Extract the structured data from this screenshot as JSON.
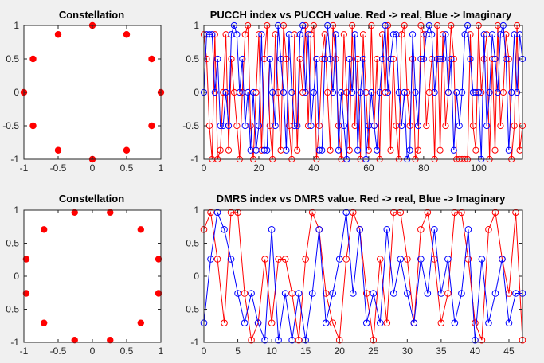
{
  "colors": {
    "real": "#ff0000",
    "imag": "#0000ff",
    "axes_bg": "#ffffff",
    "figure_bg": "#f0f0f0"
  },
  "chart_data": [
    {
      "id": "const-pucch",
      "type": "scatter",
      "title": "Constellation",
      "xlim": [
        -1,
        1
      ],
      "ylim": [
        -1,
        1
      ],
      "xticks": [
        -1,
        -0.5,
        0,
        0.5,
        1
      ],
      "yticks": [
        1,
        0.5,
        0,
        -0.5,
        -1
      ],
      "grid": false,
      "points": [
        [
          1,
          0
        ],
        [
          0.866,
          0.5
        ],
        [
          0.5,
          0.866
        ],
        [
          0,
          1
        ],
        [
          -0.5,
          0.866
        ],
        [
          -0.866,
          0.5
        ],
        [
          -1,
          0
        ],
        [
          -0.866,
          -0.5
        ],
        [
          -0.5,
          -0.866
        ],
        [
          0,
          -1
        ],
        [
          0.5,
          -0.866
        ],
        [
          0.866,
          -0.5
        ]
      ]
    },
    {
      "id": "pucch-seq",
      "type": "line",
      "title": "PUCCH index vs PUCCH value. Red -> real, Blue -> Imaginary",
      "xlim": [
        0,
        116
      ],
      "ylim": [
        -1,
        1
      ],
      "xticks": [
        0,
        20,
        40,
        60,
        80,
        100
      ],
      "yticks": [
        1,
        0.5,
        0,
        -0.5,
        -1
      ],
      "grid": false,
      "series": [
        {
          "color": "real",
          "values": [
            0.866,
            0.5,
            -0.5,
            -1,
            0.866,
            -1,
            -0.866,
            0,
            0.866,
            -0.866,
            0.5,
            0,
            -0.5,
            -1,
            0,
            0.866,
            1,
            -0.5,
            -1,
            0,
            0.866,
            -0.866,
            0.5,
            1,
            -0.5,
            -1,
            0.866,
            0,
            -0.866,
            1,
            0.5,
            -0.5,
            -1,
            0.866,
            -0.866,
            0.5,
            0,
            1,
            -0.5,
            0.866,
            1,
            -1,
            -0.5,
            0.5,
            0.866,
            0,
            -0.866,
            1,
            0.5,
            -0.5,
            -1,
            0.866,
            0,
            -0.866,
            1,
            -0.5,
            0.5,
            -1,
            0.866,
            0,
            -0.866,
            1,
            -0.5,
            0.5,
            -1,
            0.866,
            0,
            1,
            -0.866,
            0.5,
            -0.5,
            -1,
            0.866,
            1,
            0,
            -0.5,
            0.5,
            -1,
            -0.866,
            1,
            0.866,
            -0.5,
            0,
            0.5,
            -1,
            1,
            -0.866,
            0.866,
            -0.5,
            0,
            1,
            0.5,
            -1,
            -1,
            -1,
            -1,
            -1,
            0.866,
            -0.5,
            -0.866,
            1,
            0,
            0.5,
            0.866,
            -1,
            0.5,
            -0.866,
            1,
            -0.5,
            0,
            0.866,
            0.5,
            -1,
            -0.5,
            1,
            -0.866,
            -0.5
          ]
        },
        {
          "color": "imag",
          "values": [
            0,
            0.866,
            0.866,
            0.866,
            0,
            0.5,
            -0.5,
            -0.5,
            0,
            -0.5,
            0.866,
            1,
            0.866,
            0,
            0.5,
            -0.5,
            0,
            -0.866,
            0,
            -0.866,
            -0.5,
            0.866,
            -0.866,
            -0.866,
            0.5,
            0,
            -0.5,
            1,
            0.5,
            0,
            -0.866,
            0.866,
            0,
            -0.5,
            -0.5,
            0.866,
            1,
            0,
            0.866,
            -0.5,
            0,
            0.5,
            -0.866,
            -0.866,
            0.5,
            1,
            0.5,
            0,
            0.866,
            -0.866,
            0,
            -0.5,
            -1,
            0.5,
            0,
            0.866,
            -0.866,
            0,
            0.5,
            -1,
            -0.5,
            0,
            -0.5,
            -0.866,
            0,
            0.5,
            1,
            0,
            0.5,
            0.866,
            0.866,
            0,
            -0.5,
            0,
            -1,
            -0.866,
            0.866,
            0,
            -0.5,
            0.5,
            0.5,
            0.866,
            1,
            0.866,
            0,
            0.5,
            0.5,
            0.5,
            0.866,
            0,
            0.5,
            -0.866,
            0,
            -0.5,
            0,
            0.866,
            1,
            0.5,
            0,
            0,
            0,
            -1,
            0.866,
            -0.5,
            0,
            0.866,
            0.5,
            0,
            0.866,
            1,
            0.5,
            -0.866,
            0,
            0.866,
            0,
            0.866,
            0.5
          ]
        }
      ]
    },
    {
      "id": "const-dmrs",
      "type": "scatter",
      "title": "Constellation",
      "xlim": [
        -1,
        1
      ],
      "ylim": [
        -1,
        1
      ],
      "xticks": [
        -1,
        -0.5,
        0,
        0.5,
        1
      ],
      "yticks": [
        1,
        0.5,
        0,
        -0.5,
        -1
      ],
      "grid": false,
      "points": [
        [
          0.966,
          0.259
        ],
        [
          0.707,
          0.707
        ],
        [
          0.259,
          0.966
        ],
        [
          -0.259,
          0.966
        ],
        [
          -0.707,
          0.707
        ],
        [
          -0.966,
          0.259
        ],
        [
          -0.966,
          -0.259
        ],
        [
          -0.707,
          -0.707
        ],
        [
          -0.259,
          -0.966
        ],
        [
          0.259,
          -0.966
        ],
        [
          0.707,
          -0.707
        ],
        [
          0.966,
          -0.259
        ]
      ]
    },
    {
      "id": "dmrs-seq",
      "type": "line",
      "title": "DMRS index vs DMRS value. Red -> real, Blue -> Imaginary",
      "xlim": [
        0,
        47
      ],
      "ylim": [
        -1,
        1
      ],
      "xticks": [
        0,
        5,
        10,
        15,
        20,
        25,
        30,
        35,
        40,
        45
      ],
      "yticks": [
        1,
        0.5,
        0,
        -0.5,
        -1
      ],
      "grid": false,
      "series": [
        {
          "color": "real",
          "values": [
            0.707,
            0.966,
            0.259,
            -0.707,
            0.966,
            0.966,
            -0.259,
            -0.966,
            -0.707,
            0.259,
            -0.707,
            0.259,
            0.259,
            -0.259,
            -0.966,
            0.259,
            0.966,
            0.707,
            -0.259,
            -0.707,
            -0.966,
            0.259,
            0.966,
            0.707,
            -0.259,
            -0.966,
            0.259,
            -0.707,
            0.966,
            0.966,
            0.259,
            -0.707,
            0.707,
            0.966,
            0.259,
            -0.707,
            -0.259,
            0.966,
            0.966,
            0.259,
            -0.707,
            -0.966,
            0.707,
            0.966,
            0.259,
            -0.259,
            0.966,
            -0.966
          ]
        },
        {
          "color": "imag",
          "values": [
            -0.707,
            0.259,
            0.966,
            0.707,
            0.259,
            -0.259,
            -0.707,
            -0.259,
            -0.707,
            -0.966,
            0.707,
            -0.966,
            -0.259,
            -0.966,
            -0.259,
            -0.966,
            -0.259,
            0.707,
            -0.707,
            -0.259,
            0.259,
            0.966,
            -0.259,
            0.707,
            -0.707,
            -0.259,
            -0.707,
            0.707,
            -0.259,
            0.259,
            -0.259,
            -0.707,
            0.259,
            -0.259,
            0.707,
            -0.259,
            0.259,
            -0.707,
            -0.259,
            0.707,
            -0.966,
            0.259,
            -0.707,
            -0.259,
            0.259,
            -0.707,
            -0.259,
            -0.259
          ]
        }
      ]
    }
  ]
}
